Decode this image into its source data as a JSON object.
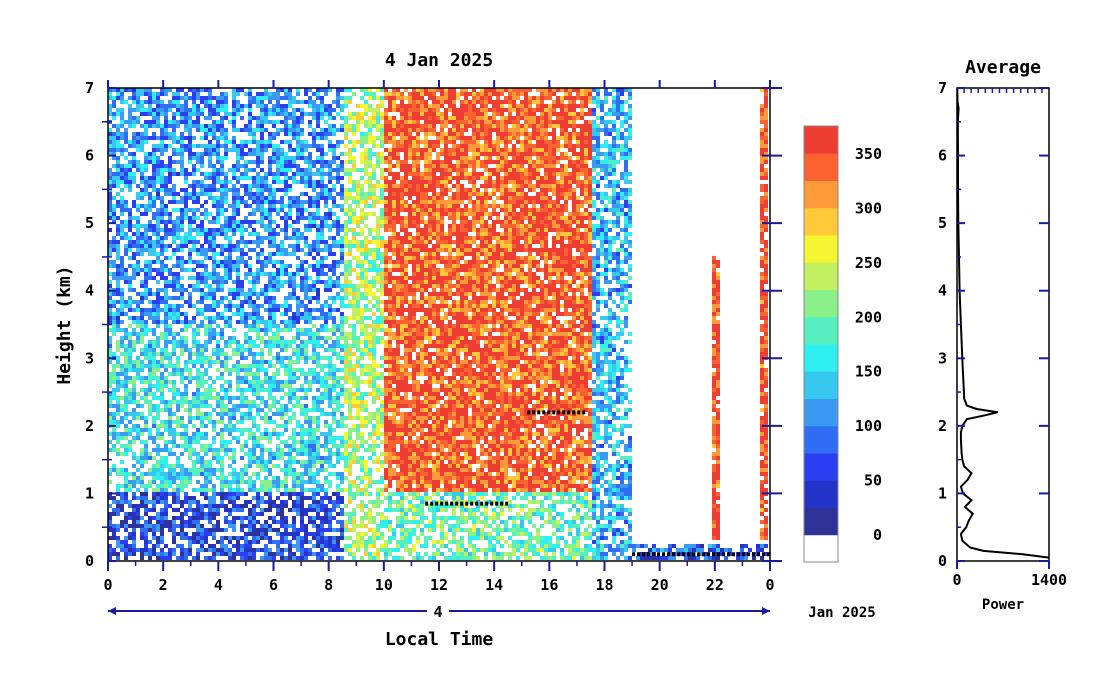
{
  "main_chart": {
    "title": "4 Jan 2025",
    "ylabel": "Height (km)",
    "xlabel": "Local Time",
    "date_day": "4",
    "date_suffix": "Jan 2025"
  },
  "colorbar": {
    "labels": [
      "0",
      "50",
      "100",
      "150",
      "200",
      "250",
      "300",
      "350"
    ],
    "colors": [
      "#ffffff",
      "#2e3196",
      "#2434c8",
      "#2b3ef0",
      "#2f6df5",
      "#3a99f2",
      "#36c8ef",
      "#2ff0f0",
      "#56f0c0",
      "#8cf08a",
      "#c3f061",
      "#f5f531",
      "#ffc93a",
      "#ff9a3a",
      "#fb6231",
      "#ee3e34"
    ]
  },
  "side_panel": {
    "title": "Average",
    "xlabel": "Power"
  },
  "chart_data": [
    {
      "type": "heatmap",
      "title": "4 Jan 2025",
      "xlabel": "Local Time",
      "ylabel": "Height (km)",
      "x_ticks": [
        "0",
        "2",
        "4",
        "6",
        "8",
        "10",
        "12",
        "14",
        "16",
        "18",
        "20",
        "22",
        "0"
      ],
      "y_ticks": [
        "0",
        "1",
        "2",
        "3",
        "4",
        "5",
        "6",
        "7"
      ],
      "xlim": [
        0,
        24
      ],
      "ylim": [
        0,
        7
      ],
      "colorbar_range": [
        0,
        380
      ],
      "colorbar_ticks": [
        0,
        50,
        100,
        150,
        200,
        250,
        300,
        350
      ],
      "grid": false,
      "regions": [
        {
          "x": [
            0,
            10
          ],
          "y": [
            0,
            1.0
          ],
          "level": 60
        },
        {
          "x": [
            0,
            10
          ],
          "y": [
            1.0,
            3.5
          ],
          "level": 160
        },
        {
          "x": [
            0,
            10
          ],
          "y": [
            3.5,
            7
          ],
          "level": 110
        },
        {
          "x": [
            8.5,
            10
          ],
          "y": [
            0,
            7
          ],
          "level": 230
        },
        {
          "x": [
            10,
            17.5
          ],
          "y": [
            1.0,
            7
          ],
          "level": 350
        },
        {
          "x": [
            10,
            17.5
          ],
          "y": [
            0,
            1.0
          ],
          "level": 200
        },
        {
          "x": [
            17.5,
            19
          ],
          "y": [
            0,
            7
          ],
          "level": 130
        },
        {
          "x": [
            19,
            24
          ],
          "y": [
            0,
            0.25
          ],
          "level": 80
        },
        {
          "x": [
            19,
            24
          ],
          "y": [
            0.25,
            7
          ],
          "level": 0
        },
        {
          "x": [
            21.9,
            22.2
          ],
          "y": [
            0.3,
            4.5
          ],
          "level": 360
        },
        {
          "x": [
            23.6,
            23.9
          ],
          "y": [
            0.3,
            7
          ],
          "level": 360
        }
      ],
      "cloud_tops": [
        {
          "x": [
            15.2,
            17.3
          ],
          "y": 2.2
        },
        {
          "x": [
            11.5,
            14.5
          ],
          "y": 0.85
        },
        {
          "x": [
            19.0,
            24.0
          ],
          "y": 0.1
        }
      ]
    },
    {
      "type": "line",
      "title": "Average",
      "xlabel": "Power",
      "x_ticks": [
        "0",
        "1400"
      ],
      "xlim": [
        0,
        1400
      ],
      "ylim": [
        0,
        7
      ],
      "points": [
        [
          0.05,
          1400
        ],
        [
          0.1,
          1000
        ],
        [
          0.15,
          400
        ],
        [
          0.2,
          200
        ],
        [
          0.3,
          80
        ],
        [
          0.4,
          60
        ],
        [
          0.5,
          140
        ],
        [
          0.6,
          180
        ],
        [
          0.7,
          240
        ],
        [
          0.8,
          120
        ],
        [
          0.9,
          220
        ],
        [
          1.0,
          90
        ],
        [
          1.1,
          60
        ],
        [
          1.2,
          160
        ],
        [
          1.3,
          220
        ],
        [
          1.4,
          110
        ],
        [
          1.5,
          80
        ],
        [
          1.6,
          70
        ],
        [
          1.8,
          60
        ],
        [
          1.9,
          60
        ],
        [
          2.0,
          80
        ],
        [
          2.1,
          150
        ],
        [
          2.15,
          400
        ],
        [
          2.2,
          620
        ],
        [
          2.25,
          300
        ],
        [
          2.3,
          150
        ],
        [
          2.4,
          110
        ],
        [
          2.6,
          100
        ],
        [
          2.8,
          90
        ],
        [
          3.0,
          80
        ],
        [
          3.5,
          60
        ],
        [
          4.0,
          40
        ],
        [
          4.5,
          30
        ],
        [
          5.0,
          20
        ],
        [
          5.5,
          15
        ],
        [
          6.0,
          15
        ],
        [
          6.5,
          12
        ],
        [
          6.7,
          25
        ],
        [
          6.8,
          8
        ],
        [
          7.0,
          5
        ]
      ]
    }
  ]
}
